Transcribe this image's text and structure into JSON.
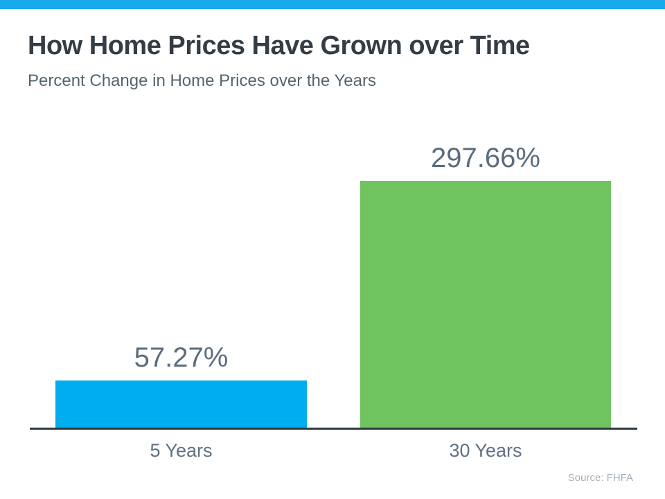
{
  "header": {
    "title": "How Home Prices Have Grown over Time",
    "subtitle": "Percent Change in Home Prices over the Years"
  },
  "chart_data": {
    "type": "bar",
    "title": "How Home Prices Have Grown over Time",
    "subtitle": "Percent Change in Home Prices over the Years",
    "categories": [
      "5 Years",
      "30 Years"
    ],
    "values": [
      57.27,
      297.66
    ],
    "value_labels": [
      "57.27%",
      "297.66%"
    ],
    "bar_colors": [
      "#00ADEE",
      "#70C45F"
    ],
    "xlabel": "",
    "ylabel": "",
    "ylim": [
      0,
      300
    ],
    "grid": false,
    "legend": false,
    "source": "Source: FHFA"
  },
  "footer": {
    "source": "Source: FHFA"
  },
  "colors": {
    "top_bar": "#17ABEA",
    "title_text": "#343C46",
    "subtitle_text": "#54656F",
    "value_label_text": "#5B6C7D",
    "category_label_text": "#5F7183",
    "axis_line": "#2F3940",
    "source_text": "#A4AFB9",
    "bar_5_years": "#00ADEE",
    "bar_30_years": "#70C45F"
  }
}
